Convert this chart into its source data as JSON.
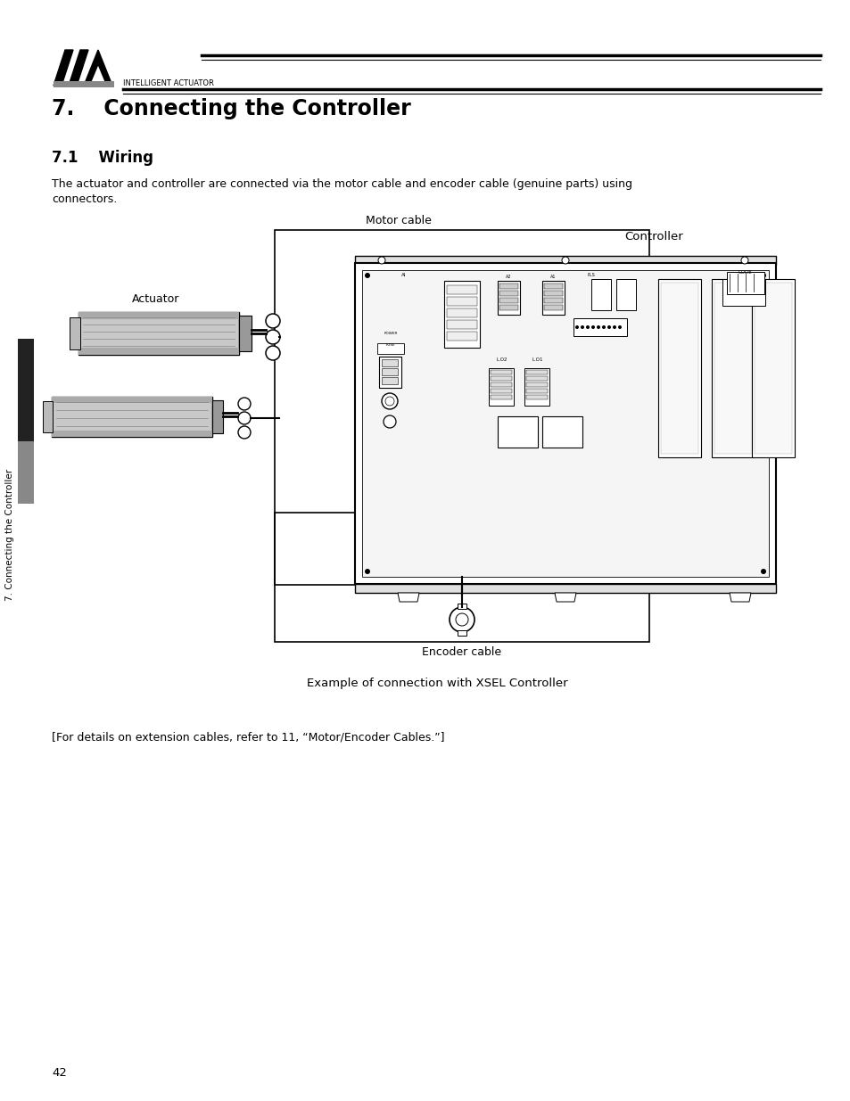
{
  "bg_color": "#ffffff",
  "text_color": "#000000",
  "page_number": "42",
  "section_number": "7.",
  "section_title": "Connecting the Controller",
  "subsection_number": "7.1",
  "subsection_title": "Wiring",
  "body_line1": "The actuator and controller are connected via the motor cable and encoder cable (genuine parts) using",
  "body_line2": "connectors.",
  "label_motor_cable": "Motor cable",
  "label_controller": "Controller",
  "label_actuator": "Actuator",
  "label_encoder_cable": "Encoder cable",
  "caption": "Example of connection with XSEL Controller",
  "note_text": "[For details on extension cables, refer to 11, “Motor/Encoder Cables.”]",
  "sidebar_text": "7. Connecting the Controller",
  "intelligent_actuator_text": "INTELLIGENT ACTUATOR"
}
